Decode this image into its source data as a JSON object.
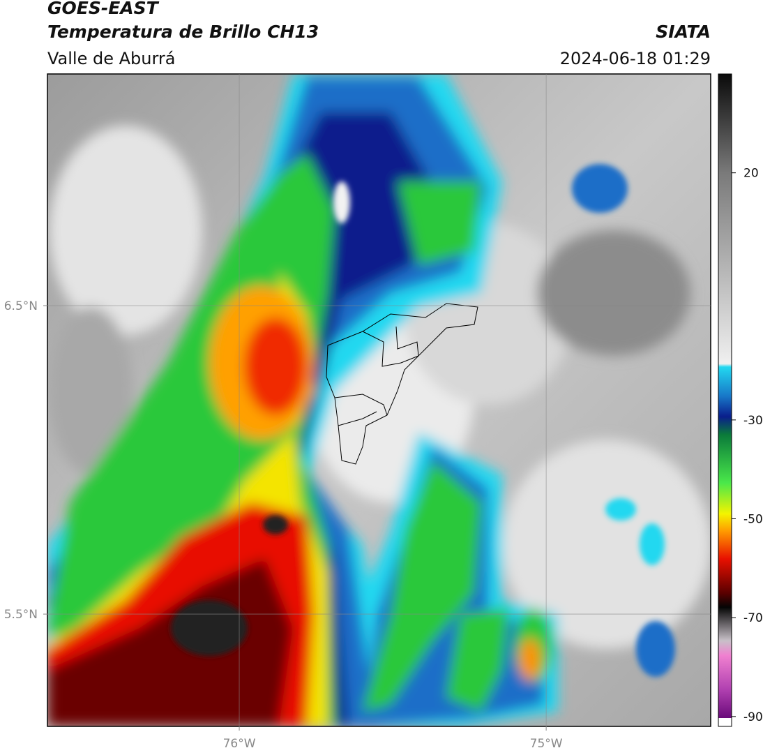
{
  "header": {
    "title": "GOES-EAST",
    "subtitle": "Temperatura de Brillo CH13",
    "source": "SIATA",
    "region": "Valle de Aburrá",
    "timestamp": "2024-06-18 01:29"
  },
  "map": {
    "xlim": [
      -76.625,
      -74.464
    ],
    "ylim": [
      5.136,
      7.251
    ],
    "xticks": [
      {
        "value": -76,
        "label": "76°W"
      },
      {
        "value": -75,
        "label": "75°W"
      }
    ],
    "yticks": [
      {
        "value": 6.5,
        "label": "6.5°N"
      },
      {
        "value": 5.5,
        "label": "5.5°N"
      }
    ]
  },
  "colorbar": {
    "lim": [
      -92,
      40
    ],
    "ticks": [
      20,
      -30,
      -50,
      -70,
      -90
    ]
  }
}
